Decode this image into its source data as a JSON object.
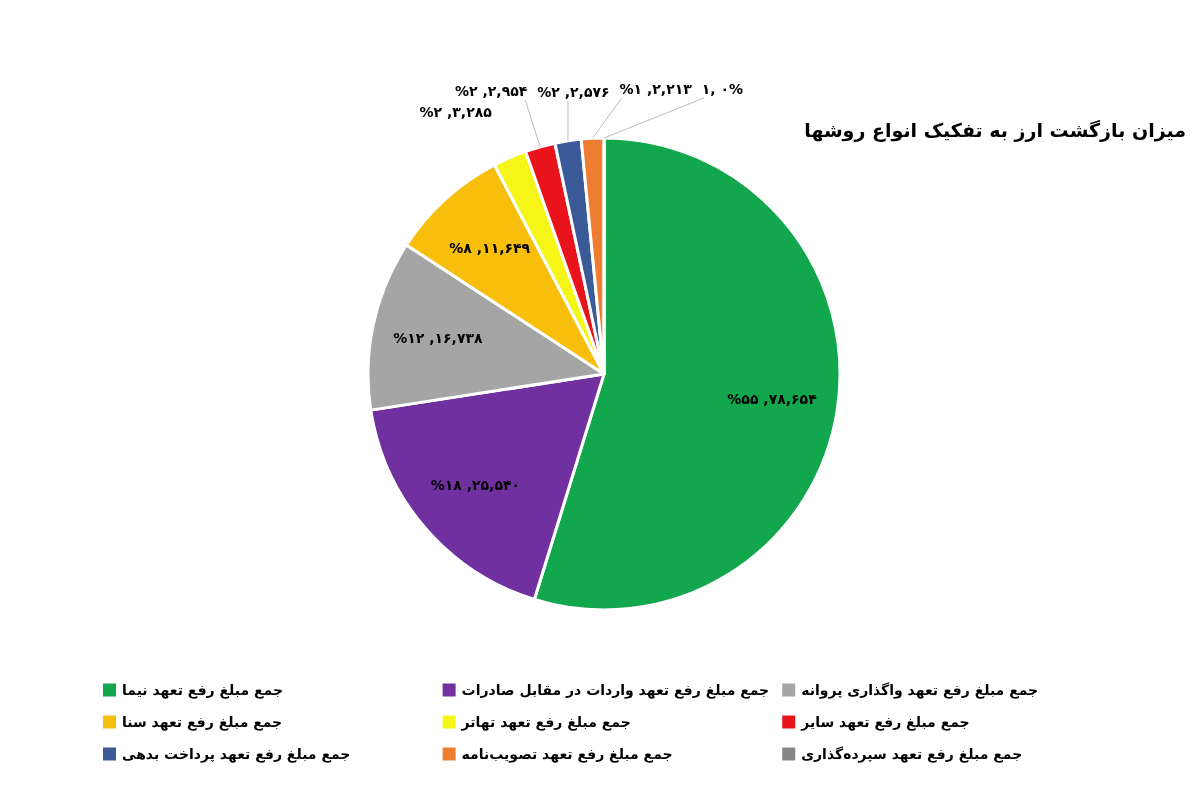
{
  "chart_data": {
    "type": "pie",
    "title": "میزان بازگشت ارز به تفکیک انواع روشها",
    "categories": [
      "جمع مبلغ رفع تعهد نیما",
      "جمع مبلغ رفع تعهد واردات در مقابل صادرات",
      "جمع مبلغ رفع تعهد واگذاری پروانه",
      "جمع مبلغ رفع تعهد سنا",
      "جمع مبلغ رفع تعهد تهاتر",
      "جمع مبلغ رفع تعهد سایر",
      "جمع مبلغ رفع تعهد پرداخت بدهی",
      "جمع مبلغ رفع تعهد تصویب‌نامه",
      "جمع مبلغ رفع تعهد سپرده‌گذاری"
    ],
    "values": [
      78654,
      25540,
      16738,
      11649,
      3285,
      2954,
      2576,
      2213,
      1
    ],
    "colors": [
      "#12a64d",
      "#7030a0",
      "#a5a5a5",
      "#f7be0b",
      "#f5f518",
      "#e8131b",
      "#3a5a98",
      "#ef7d31",
      "#878787"
    ],
    "value_labels": [
      "%۵۵ ,۷۸,۶۵۴",
      "%۱۸ ,۲۵,۵۴۰",
      "%۱۲ ,۱۶,۷۳۸",
      "%۸ ,۱۱,۶۴۹",
      "%۲ ,۳,۲۸۵",
      "%۲ ,۲,۹۵۴",
      "%۲ ,۲,۵۷۶",
      "%۱ ,۲,۲۱۳",
      "۱, ۰%"
    ],
    "legend": "bottom"
  }
}
